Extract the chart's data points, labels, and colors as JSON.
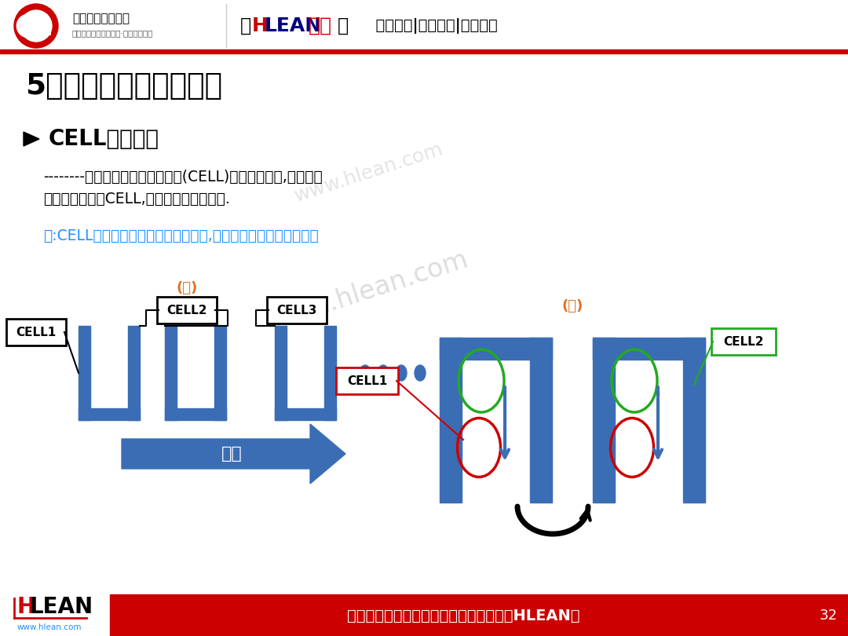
{
  "title_main": "5．柔性生产方式的种类",
  "header_company": "精益生产促进中心",
  "header_sub": "中国先进精益管理体系·智能制造系统",
  "header_text2": "精益生产|智能制造|管理前沿",
  "bullet_title": "CELL生产方式",
  "body_line1": "--------选定一个最小单位生产量(CELL)进行工序设定,然后根据",
  "body_line2": "市场变化复制该CELL,以同样方式进行生产.",
  "note_text": "注:CELL可以是人员与生产资料的组合,也可以是单纯的人员组成。",
  "footer_slogan": "做行业标杆，找精弘益；要幸福高效，用HLEAN！",
  "footer_page": "32",
  "footer_website": "www.hlean.com",
  "bg_color": "#ffffff",
  "header_line_color": "#cc0000",
  "blue_color": "#3B6DB5",
  "red_color": "#cc0000",
  "orange_color": "#e07020",
  "note_color": "#1e90ff",
  "green_color": "#22aa22",
  "footer_bg": "#cc0000",
  "footer_text_color": "#ffffff",
  "watermark": "www.hlean.com"
}
